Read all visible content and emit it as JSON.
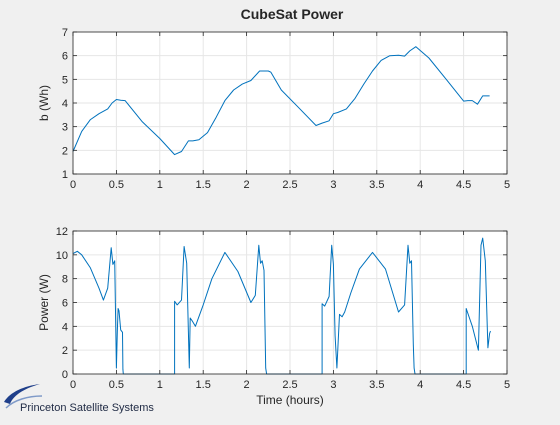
{
  "title": "CubeSat Power",
  "logo": {
    "text": "Princeton Satellite Systems",
    "icon": "orbit-swoosh-icon",
    "color": "#1f3f8a"
  },
  "colors": {
    "figure_bg": "#f0f0f0",
    "axes_bg": "#ffffff",
    "line": "#0072bd",
    "grid": "#e6e6e6",
    "axis": "#262626"
  },
  "chart_data": [
    {
      "type": "line",
      "title": "CubeSat Power",
      "xlabel": "",
      "ylabel": "b (Wh)",
      "xlim": [
        0,
        5
      ],
      "ylim": [
        1,
        7
      ],
      "xticks": [
        0,
        0.5,
        1,
        1.5,
        2,
        2.5,
        3,
        3.5,
        4,
        4.5,
        5
      ],
      "yticks": [
        1,
        2,
        3,
        4,
        5,
        6,
        7
      ],
      "grid": true,
      "series": [
        {
          "x": [
            0,
            0.1,
            0.2,
            0.3,
            0.4,
            0.45,
            0.5,
            0.55,
            0.6,
            0.8,
            1.0,
            1.17,
            1.25,
            1.33,
            1.38,
            1.45,
            1.55,
            1.65,
            1.75,
            1.85,
            1.95,
            2.05,
            2.15,
            2.2,
            2.25,
            2.28,
            2.4,
            2.6,
            2.8,
            2.87,
            2.95,
            3.0,
            3.05,
            3.15,
            3.25,
            3.35,
            3.45,
            3.55,
            3.65,
            3.75,
            3.82,
            3.88,
            3.95,
            4.1,
            4.3,
            4.5,
            4.55,
            4.6,
            4.66,
            4.72,
            4.78,
            4.8
          ],
          "y": [
            1.95,
            2.8,
            3.3,
            3.55,
            3.75,
            4.0,
            4.15,
            4.12,
            4.1,
            3.2,
            2.5,
            1.82,
            1.95,
            2.4,
            2.4,
            2.45,
            2.75,
            3.4,
            4.1,
            4.55,
            4.8,
            4.95,
            5.35,
            5.35,
            5.35,
            5.3,
            4.55,
            3.8,
            3.05,
            3.15,
            3.25,
            3.55,
            3.6,
            3.75,
            4.2,
            4.8,
            5.35,
            5.8,
            6.0,
            6.02,
            5.98,
            6.2,
            6.38,
            5.9,
            5.0,
            4.08,
            4.1,
            4.1,
            3.95,
            4.3,
            4.3,
            4.3
          ]
        }
      ]
    },
    {
      "type": "line",
      "title": "",
      "xlabel": "Time (hours)",
      "ylabel": "Power (W)",
      "xlim": [
        0,
        5
      ],
      "ylim": [
        0,
        12
      ],
      "xticks": [
        0,
        0.5,
        1,
        1.5,
        2,
        2.5,
        3,
        3.5,
        4,
        4.5,
        5
      ],
      "yticks": [
        0,
        2,
        4,
        6,
        8,
        10,
        12
      ],
      "grid": true,
      "series": [
        {
          "x": [
            0,
            0.05,
            0.1,
            0.2,
            0.3,
            0.35,
            0.4,
            0.44,
            0.46,
            0.48,
            0.5,
            0.51,
            0.52,
            0.53,
            0.55,
            0.57,
            0.575,
            0.58,
            0.8,
            1.16,
            1.17,
            1.17,
            1.2,
            1.25,
            1.28,
            1.31,
            1.33,
            1.34,
            1.35,
            1.37,
            1.41,
            1.5,
            1.6,
            1.75,
            1.9,
            2.05,
            2.1,
            2.14,
            2.16,
            2.18,
            2.2,
            2.22,
            2.23,
            2.24,
            2.25,
            2.3,
            2.86,
            2.87,
            2.87,
            2.9,
            2.95,
            2.98,
            3.0,
            3.02,
            3.04,
            3.07,
            3.1,
            3.13,
            3.2,
            3.3,
            3.45,
            3.6,
            3.75,
            3.82,
            3.86,
            3.88,
            3.9,
            3.92,
            3.93,
            3.94,
            3.95,
            4.0,
            4.52,
            4.53,
            4.53,
            4.6,
            4.67,
            4.7,
            4.72,
            4.75,
            4.78,
            4.8,
            4.81
          ],
          "y": [
            10.1,
            10.3,
            10.0,
            8.9,
            7.2,
            6.2,
            7.2,
            10.6,
            9.2,
            9.5,
            0.5,
            3.5,
            5.5,
            5.3,
            3.7,
            3.5,
            0.4,
            0,
            0,
            0,
            0,
            6.1,
            5.8,
            6.2,
            10.7,
            9.3,
            3.5,
            0.5,
            4.7,
            4.5,
            4.0,
            5.8,
            8.0,
            10.2,
            8.6,
            6.0,
            6.6,
            10.8,
            9.3,
            9.5,
            8.7,
            0.5,
            0,
            0,
            0,
            0,
            0,
            0,
            5.9,
            5.7,
            6.5,
            10.8,
            9.2,
            3.2,
            0.5,
            5.0,
            4.8,
            5.2,
            6.8,
            8.8,
            10.2,
            8.8,
            5.2,
            5.8,
            10.8,
            9.3,
            9.5,
            2.5,
            0.5,
            0,
            0,
            0,
            0,
            0,
            5.5,
            4.0,
            2.0,
            10.8,
            11.4,
            9.5,
            2.2,
            3.4,
            3.6
          ]
        }
      ]
    }
  ]
}
